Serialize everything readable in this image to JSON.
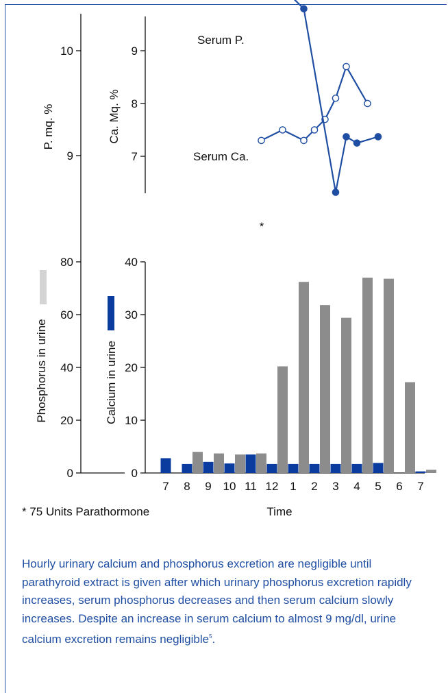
{
  "chart_data": {
    "type": "line+bar",
    "time_labels": [
      "7",
      "8",
      "9",
      "10",
      "11",
      "12",
      "1",
      "2",
      "3",
      "4",
      "5",
      "6",
      "7"
    ],
    "x_label": "Time",
    "top_panel": {
      "left_axis": {
        "label": "P. mq. %",
        "ticks": [
          9,
          10
        ]
      },
      "right_axis": {
        "label": "Ca. Mq. %",
        "ticks": [
          7,
          8,
          9
        ]
      },
      "series": [
        {
          "name": "Serum P.",
          "marker": "filled-circle",
          "points": [
            [
              11,
              10.6
            ],
            [
              13,
              10.4
            ],
            [
              16,
              8.65
            ],
            [
              17,
              9.18
            ],
            [
              18,
              9.12
            ],
            [
              20,
              9.18
            ]
          ]
        },
        {
          "name": "Serum Ca.",
          "marker": "open-circle",
          "points": [
            [
              9,
              7.3
            ],
            [
              11,
              7.5
            ],
            [
              13,
              7.3
            ],
            [
              14,
              7.5
            ],
            [
              15,
              7.7
            ],
            [
              16,
              8.1
            ],
            [
              17,
              8.7
            ],
            [
              19,
              8.0
            ]
          ]
        }
      ]
    },
    "bottom_panel": {
      "left_axis": {
        "label": "Phosphorus in urine",
        "ticks": [
          0,
          20,
          40,
          60,
          80
        ]
      },
      "right_axis": {
        "label": "Calcium in urine",
        "ticks": [
          0,
          10,
          20,
          30,
          40
        ]
      },
      "series": [
        {
          "name": "Phosphorus in urine",
          "color": "#8c8c8c",
          "legend_color": "#d4d4d4",
          "categories": [
            "7",
            "8",
            "9",
            "10",
            "11",
            "12",
            "1",
            "2",
            "3",
            "4",
            "5",
            "6",
            "7"
          ],
          "values": [
            null,
            4.0,
            3.7,
            3.5,
            3.7,
            20.2,
            36.2,
            31.8,
            29.4,
            37.0,
            36.8,
            17.2,
            0.6
          ]
        },
        {
          "name": "Calcium in urine",
          "color": "#0a3ca0",
          "legend_color": "#0a3ca0",
          "categories": [
            "7",
            "8",
            "9",
            "10",
            "11",
            "12",
            "1",
            "2",
            "3",
            "4",
            "5",
            "6",
            "7"
          ],
          "values": [
            2.8,
            1.7,
            2.1,
            1.8,
            3.5,
            1.7,
            1.7,
            1.7,
            1.7,
            1.7,
            1.9,
            null,
            0.3
          ]
        }
      ]
    },
    "annotation": {
      "asterisk": "*",
      "note": "* 75  Units Parathormone"
    },
    "colors": {
      "line": "#1f4ea3",
      "caption": "#1f4ea3"
    }
  },
  "caption": {
    "text": "Hourly urinary calcium and phosphorus excretion are negligible until parathyroid extract is given after which urinary phosphorus excretion rapidly increases, serum phosphorus decreases and then serum calcium slowly increases. Despite an increase in serum calcium to almost 9 mg/dl, urine calcium excretion remains negligible",
    "reference": "5",
    "end": "."
  }
}
